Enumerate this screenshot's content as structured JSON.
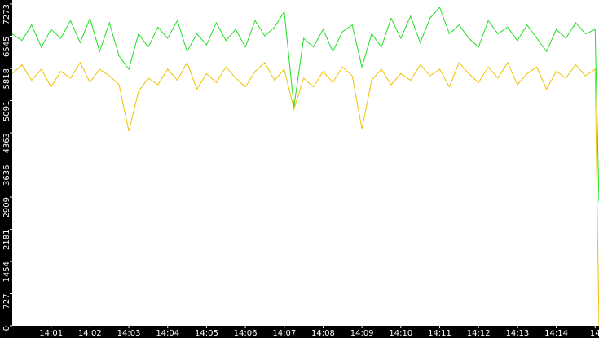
{
  "chart_data": {
    "type": "line",
    "x": [
      840,
      840.25,
      840.5,
      840.75,
      841,
      841.25,
      841.5,
      841.75,
      842,
      842.25,
      842.5,
      842.75,
      843,
      843.25,
      843.5,
      843.75,
      844,
      844.25,
      844.5,
      844.75,
      845,
      845.25,
      845.5,
      845.75,
      846,
      846.25,
      846.5,
      846.75,
      847,
      847.25,
      847.5,
      847.75,
      848,
      848.25,
      848.5,
      848.75,
      849,
      849.25,
      849.5,
      849.75,
      850,
      850.25,
      850.5,
      850.75,
      851,
      851.25,
      851.5,
      851.75,
      852,
      852.25,
      852.5,
      852.75,
      853,
      853.25,
      853.5,
      853.75,
      854,
      854.25,
      854.5,
      854.75,
      855,
      855.1
    ],
    "series": [
      {
        "color": "#22dd22",
        "values": [
          6600,
          6450,
          6800,
          6300,
          6700,
          6500,
          6900,
          6400,
          6950,
          6200,
          6850,
          6100,
          5800,
          6600,
          6300,
          6750,
          6500,
          6900,
          6200,
          6600,
          6350,
          6850,
          6450,
          6700,
          6300,
          6900,
          6550,
          6750,
          7100,
          4950,
          6500,
          6300,
          6700,
          6200,
          6650,
          6800,
          5850,
          6600,
          6300,
          6950,
          6500,
          7000,
          6400,
          6950,
          7200,
          6600,
          6800,
          6500,
          6300,
          6900,
          6600,
          6750,
          6450,
          6800,
          6500,
          6200,
          6700,
          6500,
          6850,
          6600,
          6700,
          2800
        ]
      },
      {
        "color": "#f0c000",
        "values": [
          5700,
          5900,
          5550,
          5800,
          5400,
          5750,
          5600,
          5950,
          5500,
          5800,
          5650,
          5450,
          4400,
          5300,
          5600,
          5450,
          5800,
          5550,
          5950,
          5350,
          5700,
          5500,
          5850,
          5600,
          5400,
          5750,
          5950,
          5550,
          5800,
          4900,
          5600,
          5400,
          5750,
          5500,
          5850,
          5650,
          4450,
          5550,
          5800,
          5450,
          5700,
          5550,
          5900,
          5650,
          5800,
          5400,
          5950,
          5700,
          5500,
          5850,
          5600,
          5950,
          5450,
          5700,
          5850,
          5350,
          5750,
          5600,
          5900,
          5650,
          5800,
          0
        ]
      }
    ],
    "xlim": [
      840,
      855.1
    ],
    "xticks": [
      {
        "value": 841,
        "label": "14:01"
      },
      {
        "value": 842,
        "label": "14:02"
      },
      {
        "value": 843,
        "label": "14:03"
      },
      {
        "value": 844,
        "label": "14:04"
      },
      {
        "value": 845,
        "label": "14:05"
      },
      {
        "value": 846,
        "label": "14:06"
      },
      {
        "value": 847,
        "label": "14:07"
      },
      {
        "value": 848,
        "label": "14:08"
      },
      {
        "value": 849,
        "label": "14:09"
      },
      {
        "value": 850,
        "label": "14:10"
      },
      {
        "value": 851,
        "label": "14:11"
      },
      {
        "value": 852,
        "label": "14:12"
      },
      {
        "value": 853,
        "label": "14:13"
      },
      {
        "value": 854,
        "label": "14:14"
      },
      {
        "value": 855,
        "label": "14"
      }
    ],
    "ylim": [
      0,
      7273
    ],
    "yticks": [
      0,
      727,
      1454,
      2181,
      2909,
      3636,
      4363,
      5091,
      5818,
      6545,
      7273
    ],
    "grid": false
  }
}
